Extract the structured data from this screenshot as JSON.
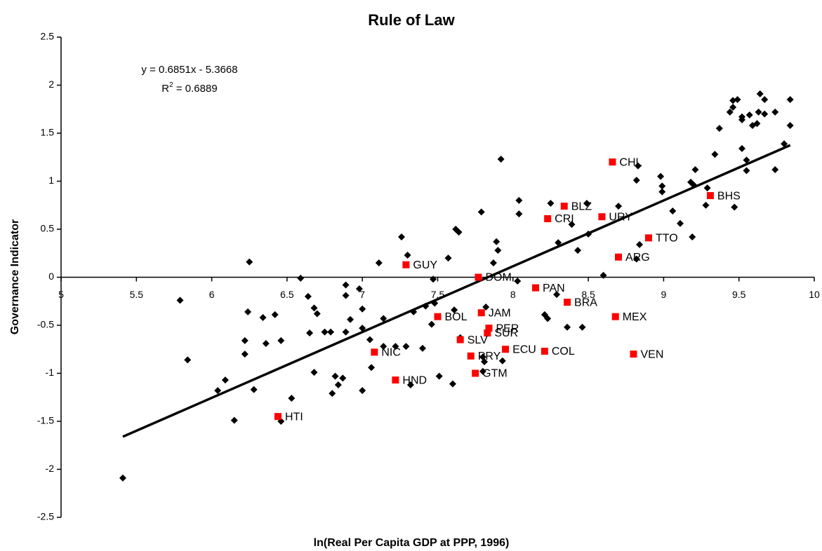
{
  "chart_data": {
    "type": "scatter",
    "title": "Rule of Law",
    "x_label": "ln(Real Per Capita GDP at PPP, 1996)",
    "y_label": "Governance Indicator",
    "equation": "y = 0.6851x - 5.3668",
    "r_squared": [
      "R",
      "2",
      " = 0.6889"
    ],
    "xlim": [
      5,
      10
    ],
    "xticks": [
      5,
      5.5,
      6,
      6.5,
      7,
      7.5,
      8,
      8.5,
      9,
      9.5,
      10
    ],
    "ylim": [
      -2.5,
      2.5
    ],
    "yticks": [
      -2.5,
      -2,
      -1.5,
      -1,
      -0.5,
      0,
      0.5,
      1,
      1.5,
      2,
      2.5
    ],
    "points": {
      "color": "#000000",
      "x": [
        5.41,
        5.79,
        5.84,
        6.25,
        6.04,
        6.09,
        6.15,
        6.22,
        6.22,
        6.24,
        6.28,
        6.34,
        6.36,
        6.42,
        6.46,
        6.46,
        6.53,
        6.59,
        6.64,
        6.65,
        6.68,
        6.7,
        6.68,
        6.75,
        6.79,
        6.8,
        6.82,
        6.84,
        6.87,
        6.89,
        6.89,
        6.89,
        6.92,
        6.98,
        7.0,
        7.0,
        7.0,
        7.05,
        7.06,
        7.11,
        7.14,
        7.14,
        7.22,
        7.26,
        7.29,
        7.3,
        7.32,
        7.34,
        7.4,
        7.42,
        7.46,
        7.47,
        7.48,
        7.51,
        7.57,
        7.6,
        7.61,
        7.62,
        7.64,
        7.65,
        7.79,
        7.82,
        7.87,
        7.89,
        7.9,
        7.92,
        7.8,
        7.81,
        7.8,
        7.93,
        8.03,
        8.04,
        8.04,
        8.21,
        8.23,
        8.25,
        8.29,
        8.3,
        8.36,
        8.39,
        8.43,
        8.46,
        8.49,
        8.5,
        8.6,
        8.7,
        8.82,
        8.82,
        8.83,
        8.84,
        8.98,
        8.99,
        8.99,
        9.06,
        9.11,
        9.18,
        9.2,
        9.19,
        9.21,
        9.28,
        9.29,
        9.34,
        9.37,
        9.47,
        9.44,
        9.46,
        9.46,
        9.49,
        9.52,
        9.52,
        9.52,
        9.55,
        9.55,
        9.57,
        9.59,
        9.62,
        9.63,
        9.64,
        9.67,
        9.67,
        9.74,
        9.74,
        9.8,
        9.84,
        9.84
      ],
      "values": [
        -2.09,
        -0.24,
        -0.86,
        0.16,
        -1.18,
        -1.07,
        -1.49,
        -0.8,
        -0.66,
        -0.36,
        -1.17,
        -0.42,
        -0.69,
        -0.39,
        -0.66,
        -1.5,
        -1.26,
        -0.01,
        -0.2,
        -0.58,
        -0.32,
        -0.38,
        -0.99,
        -0.57,
        -0.57,
        -1.21,
        -1.03,
        -1.12,
        -1.05,
        -0.08,
        -0.19,
        -0.57,
        -0.44,
        -0.12,
        -0.33,
        -0.53,
        -1.18,
        -0.65,
        -0.94,
        0.15,
        -0.43,
        -0.72,
        -0.72,
        0.42,
        -0.72,
        0.23,
        -1.12,
        -0.36,
        -0.74,
        -0.3,
        -0.49,
        -0.02,
        -0.27,
        -1.03,
        0.2,
        -1.11,
        -0.34,
        0.5,
        0.47,
        -0.63,
        0.68,
        -0.31,
        0.15,
        0.37,
        0.28,
        1.23,
        -0.83,
        -0.88,
        -0.98,
        -0.87,
        -0.04,
        0.8,
        0.66,
        -0.39,
        -0.43,
        0.77,
        -0.18,
        0.36,
        -0.52,
        0.55,
        0.28,
        -0.52,
        0.77,
        0.45,
        0.02,
        0.74,
        0.19,
        1.01,
        1.16,
        0.34,
        1.05,
        0.95,
        0.89,
        0.69,
        0.56,
        0.99,
        0.96,
        0.42,
        1.12,
        0.75,
        0.93,
        1.28,
        1.55,
        0.73,
        1.72,
        1.84,
        1.77,
        1.85,
        1.64,
        1.34,
        1.67,
        1.11,
        1.22,
        1.69,
        1.58,
        1.6,
        1.72,
        1.91,
        1.7,
        1.85,
        1.72,
        1.12,
        1.39,
        1.85,
        1.58
      ]
    },
    "labeled_points": {
      "color": "#ff0000",
      "labels": [
        "CHL",
        "BLZ",
        "CRI",
        "URY",
        "BHS",
        "TTO",
        "ARG",
        "GUY",
        "DOM",
        "PAN",
        "BRA",
        "JAM",
        "BOL",
        "MEX",
        "PER",
        "SUR",
        "SLV",
        "ECU",
        "COL",
        "NIC",
        "VEN",
        "PRY",
        "GTM",
        "HND",
        "HTI"
      ],
      "x": [
        8.66,
        8.34,
        8.23,
        8.59,
        9.31,
        8.9,
        8.7,
        7.29,
        7.77,
        8.15,
        8.36,
        7.79,
        7.5,
        8.68,
        7.84,
        7.83,
        7.65,
        7.95,
        8.21,
        7.08,
        8.8,
        7.72,
        7.75,
        7.22,
        6.44
      ],
      "values": [
        1.2,
        0.74,
        0.61,
        0.63,
        0.85,
        0.41,
        0.21,
        0.13,
        0.0,
        -0.11,
        -0.26,
        -0.37,
        -0.41,
        -0.41,
        -0.53,
        -0.58,
        -0.65,
        -0.75,
        -0.77,
        -0.78,
        -0.8,
        -0.82,
        -1.0,
        -1.07,
        -1.45
      ]
    },
    "trendline": {
      "color": "#000000",
      "x": [
        5.41,
        9.84
      ],
      "values": [
        -1.66,
        1.375
      ]
    }
  }
}
